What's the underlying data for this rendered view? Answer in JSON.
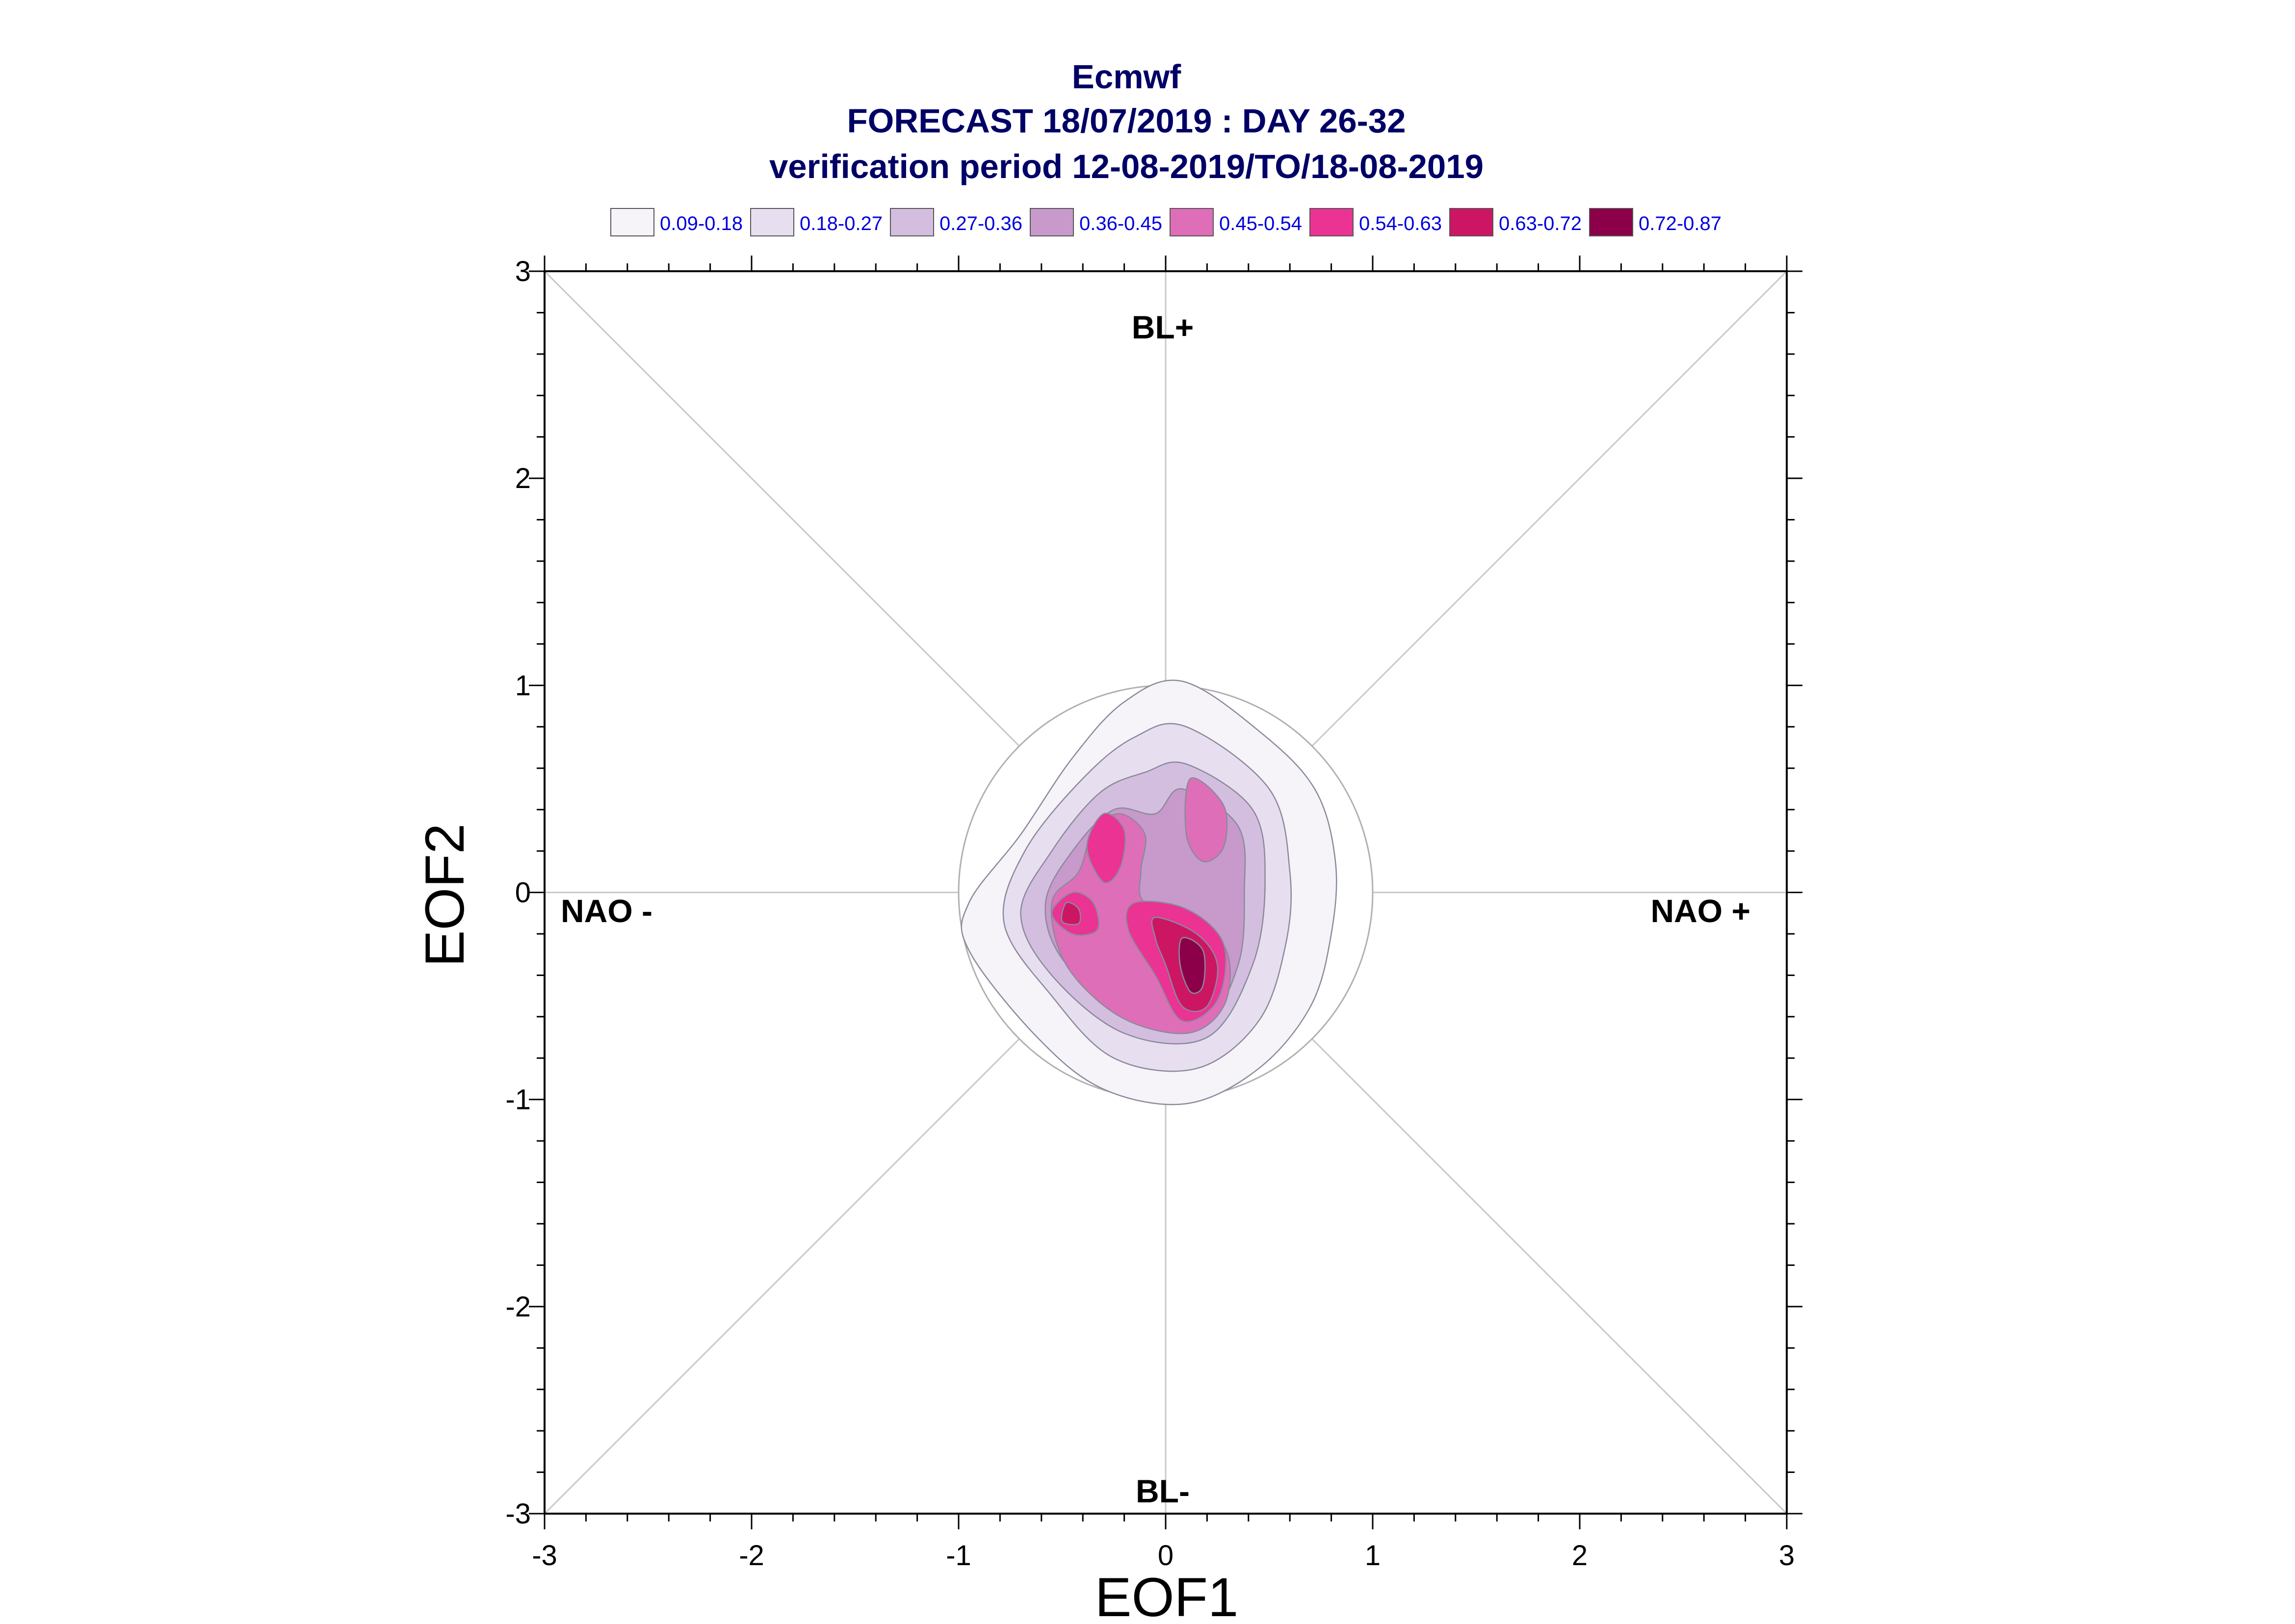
{
  "chart_data": {
    "type": "contour",
    "title_lines": [
      "Ecmwf",
      "FORECAST 18/07/2019 : DAY 26-32",
      "verification period 12-08-2019/TO/18-08-2019"
    ],
    "xlabel": "EOF1",
    "ylabel": "EOF2",
    "xlim": [
      -3,
      3
    ],
    "ylim": [
      -3,
      3
    ],
    "xticks": [
      "-3",
      "-2",
      "-1",
      "0",
      "1",
      "2",
      "3"
    ],
    "yticks": [
      "-3",
      "-2",
      "-1",
      "0",
      "1",
      "2",
      "3"
    ],
    "regions": {
      "top": "BL+",
      "bottom": "BL-",
      "left": "NAO -",
      "right": "NAO +"
    },
    "reference_circle_radius": 1.0,
    "legend": [
      {
        "label": "0.09-0.18",
        "color": "#f6f3f9"
      },
      {
        "label": "0.18-0.27",
        "color": "#e7dff0"
      },
      {
        "label": "0.27-0.36",
        "color": "#d4bedf"
      },
      {
        "label": "0.36-0.45",
        "color": "#c79acb"
      },
      {
        "label": "0.45-0.54",
        "color": "#df6eb8"
      },
      {
        "label": "0.54-0.63",
        "color": "#ea3393"
      },
      {
        "label": "0.63-0.72",
        "color": "#cc1664"
      },
      {
        "label": "0.72-0.87",
        "color": "#8b0048"
      }
    ],
    "contours": [
      {
        "level": 0,
        "points": [
          [
            0.08,
            1.02
          ],
          [
            0.45,
            0.78
          ],
          [
            0.72,
            0.5
          ],
          [
            0.82,
            0.15
          ],
          [
            0.8,
            -0.2
          ],
          [
            0.7,
            -0.55
          ],
          [
            0.45,
            -0.85
          ],
          [
            0.1,
            -1.02
          ],
          [
            -0.3,
            -0.95
          ],
          [
            -0.62,
            -0.7
          ],
          [
            -0.95,
            -0.28
          ],
          [
            -0.95,
            -0.05
          ],
          [
            -0.7,
            0.28
          ],
          [
            -0.45,
            0.65
          ],
          [
            -0.2,
            0.92
          ]
        ]
      },
      {
        "level": 1,
        "points": [
          [
            0.1,
            0.8
          ],
          [
            0.5,
            0.5
          ],
          [
            0.6,
            0.1
          ],
          [
            0.58,
            -0.25
          ],
          [
            0.45,
            -0.62
          ],
          [
            0.15,
            -0.85
          ],
          [
            -0.25,
            -0.8
          ],
          [
            -0.55,
            -0.5
          ],
          [
            -0.78,
            -0.15
          ],
          [
            -0.68,
            0.2
          ],
          [
            -0.4,
            0.55
          ],
          [
            -0.15,
            0.75
          ]
        ]
      },
      {
        "level": 2,
        "points": [
          [
            0.1,
            0.62
          ],
          [
            0.42,
            0.4
          ],
          [
            0.48,
            0.05
          ],
          [
            0.42,
            -0.35
          ],
          [
            0.2,
            -0.7
          ],
          [
            -0.2,
            -0.68
          ],
          [
            -0.55,
            -0.4
          ],
          [
            -0.7,
            -0.1
          ],
          [
            -0.55,
            0.2
          ],
          [
            -0.32,
            0.48
          ],
          [
            -0.1,
            0.58
          ]
        ]
      },
      {
        "level": 3,
        "points": [
          [
            0.08,
            0.5
          ],
          [
            0.35,
            0.32
          ],
          [
            0.38,
            0.0
          ],
          [
            0.35,
            -0.35
          ],
          [
            0.18,
            -0.62
          ],
          [
            -0.2,
            -0.58
          ],
          [
            -0.5,
            -0.32
          ],
          [
            -0.58,
            -0.05
          ],
          [
            -0.45,
            0.2
          ],
          [
            -0.25,
            0.4
          ],
          [
            -0.05,
            0.38
          ]
        ]
      },
      {
        "level": 4,
        "points": [
          [
            -0.22,
            0.38
          ],
          [
            -0.1,
            0.28
          ],
          [
            -0.12,
            0.1
          ],
          [
            -0.1,
            -0.05
          ],
          [
            0.15,
            -0.12
          ],
          [
            0.3,
            -0.3
          ],
          [
            0.28,
            -0.55
          ],
          [
            0.1,
            -0.68
          ],
          [
            -0.22,
            -0.6
          ],
          [
            -0.48,
            -0.35
          ],
          [
            -0.55,
            -0.05
          ],
          [
            -0.42,
            0.1
          ],
          [
            -0.35,
            0.3
          ]
        ]
      },
      {
        "level": 4,
        "points": [
          [
            0.12,
            0.55
          ],
          [
            0.28,
            0.42
          ],
          [
            0.28,
            0.22
          ],
          [
            0.18,
            0.15
          ],
          [
            0.1,
            0.28
          ]
        ]
      },
      {
        "level": 5,
        "points": [
          [
            -0.3,
            0.38
          ],
          [
            -0.2,
            0.3
          ],
          [
            -0.22,
            0.12
          ],
          [
            -0.3,
            0.05
          ],
          [
            -0.38,
            0.22
          ]
        ]
      },
      {
        "level": 5,
        "points": [
          [
            -0.45,
            0.0
          ],
          [
            -0.35,
            -0.05
          ],
          [
            -0.33,
            -0.18
          ],
          [
            -0.45,
            -0.2
          ],
          [
            -0.55,
            -0.1
          ]
        ]
      },
      {
        "level": 5,
        "points": [
          [
            -0.15,
            -0.05
          ],
          [
            0.1,
            -0.08
          ],
          [
            0.28,
            -0.25
          ],
          [
            0.25,
            -0.52
          ],
          [
            0.08,
            -0.62
          ],
          [
            -0.05,
            -0.4
          ],
          [
            -0.18,
            -0.18
          ]
        ]
      },
      {
        "level": 6,
        "points": [
          [
            -0.48,
            -0.05
          ],
          [
            -0.42,
            -0.08
          ],
          [
            -0.42,
            -0.15
          ],
          [
            -0.5,
            -0.14
          ]
        ]
      },
      {
        "level": 6,
        "points": [
          [
            -0.05,
            -0.12
          ],
          [
            0.15,
            -0.2
          ],
          [
            0.25,
            -0.35
          ],
          [
            0.2,
            -0.55
          ],
          [
            0.08,
            -0.55
          ],
          [
            0.0,
            -0.35
          ],
          [
            -0.05,
            -0.22
          ]
        ]
      },
      {
        "level": 7,
        "points": [
          [
            0.08,
            -0.22
          ],
          [
            0.18,
            -0.28
          ],
          [
            0.18,
            -0.45
          ],
          [
            0.12,
            -0.48
          ],
          [
            0.07,
            -0.35
          ]
        ]
      }
    ]
  }
}
